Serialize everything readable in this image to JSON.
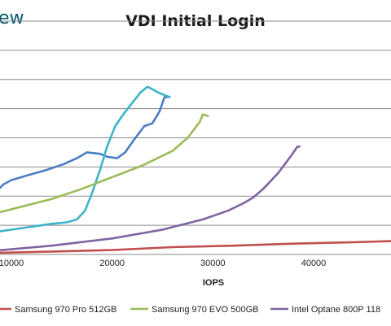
{
  "brand_fragment": "ew",
  "chart_data": {
    "type": "line",
    "title": "VDI Initial Login",
    "xlabel": "IOPS",
    "ylabel": "",
    "x_ticks": [
      10000,
      20000,
      30000,
      40000
    ],
    "x_tick_labels": [
      "10000",
      "20000",
      "30000",
      "40000"
    ],
    "xlim": [
      3000,
      50000
    ],
    "ylim": [
      0,
      8
    ],
    "y_gridlines": [
      1,
      2,
      3,
      4,
      5,
      6,
      7,
      8
    ],
    "grid": true,
    "legend_position": "bottom",
    "series": [
      {
        "name": "",
        "color": "#4a7fc1",
        "x": [
          3000,
          4500,
          5500,
          6500,
          7300,
          8200,
          9200,
          10000,
          11000,
          12000,
          13500,
          15200,
          16500,
          17500,
          18800,
          19500,
          20500,
          21300,
          22200,
          23200,
          24000,
          24700,
          25200,
          25700
        ],
        "y": [
          1.45,
          1.25,
          1.05,
          1.1,
          1.45,
          2.05,
          2.4,
          2.55,
          2.65,
          2.75,
          2.9,
          3.1,
          3.3,
          3.5,
          3.45,
          3.35,
          3.3,
          3.5,
          3.95,
          4.4,
          4.5,
          4.9,
          5.4,
          5.4
        ]
      },
      {
        "name": "",
        "color": "#3cb4c8",
        "x": [
          3000,
          5500,
          6500,
          8000,
          10000,
          12000,
          14000,
          15500,
          16500,
          17300,
          18000,
          18800,
          19500,
          20300,
          21100,
          22000,
          22800,
          23500,
          23800,
          24600,
          25300,
          25700
        ],
        "y": [
          0.2,
          0.4,
          0.6,
          0.75,
          0.85,
          0.95,
          1.05,
          1.1,
          1.2,
          1.5,
          2.1,
          2.9,
          3.7,
          4.4,
          4.8,
          5.2,
          5.55,
          5.75,
          5.7,
          5.55,
          5.45,
          5.4
        ]
      },
      {
        "name": "Samsung 970 Pro 512GB",
        "color": "#c0504d",
        "x": [
          3000,
          8000,
          14000,
          20000,
          26000,
          32000,
          38000,
          44000,
          49000,
          50000
        ],
        "y": [
          0.0,
          0.05,
          0.1,
          0.15,
          0.25,
          0.3,
          0.37,
          0.42,
          0.47,
          0.5
        ]
      },
      {
        "name": "Samsung 970 EVO 500GB",
        "color": "#9bbb59",
        "x": [
          3000,
          6000,
          10000,
          14000,
          17000,
          20000,
          23000,
          26000,
          27500,
          28700,
          29000,
          29500
        ],
        "y": [
          0.95,
          1.2,
          1.55,
          1.9,
          2.25,
          2.65,
          3.05,
          3.55,
          4.0,
          4.55,
          4.8,
          4.75
        ]
      },
      {
        "name": "Intel Optane 800P 118",
        "color": "#8064a2",
        "x": [
          3000,
          8000,
          14000,
          20000,
          25000,
          29000,
          31500,
          33000,
          34000,
          35000,
          36500,
          37800,
          38400,
          38600
        ],
        "y": [
          0.05,
          0.12,
          0.3,
          0.55,
          0.85,
          1.2,
          1.5,
          1.75,
          1.95,
          2.25,
          2.8,
          3.4,
          3.7,
          3.7
        ]
      }
    ]
  }
}
